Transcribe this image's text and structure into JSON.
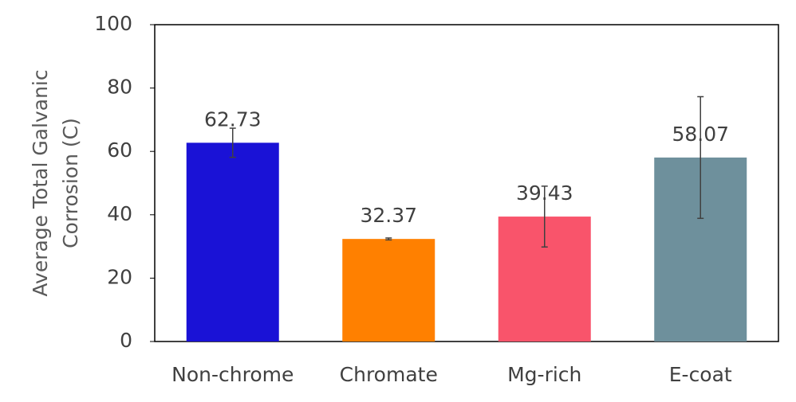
{
  "chart_data": {
    "type": "bar",
    "ylabel": [
      "Average Total Galvanic",
      "Corrosion (C)"
    ],
    "categories": [
      "Non-chrome",
      "Chromate",
      "Mg-rich",
      "E-coat"
    ],
    "values": [
      62.73,
      32.37,
      39.43,
      58.07
    ],
    "errors": [
      4.6,
      0.3,
      9.6,
      19.2
    ],
    "colors": [
      "#1a12d6",
      "#ff8000",
      "#f9546b",
      "#6e909c"
    ],
    "ylim": [
      0,
      100
    ],
    "yticks": [
      0,
      20,
      40,
      60,
      80,
      100
    ],
    "grid": false
  }
}
